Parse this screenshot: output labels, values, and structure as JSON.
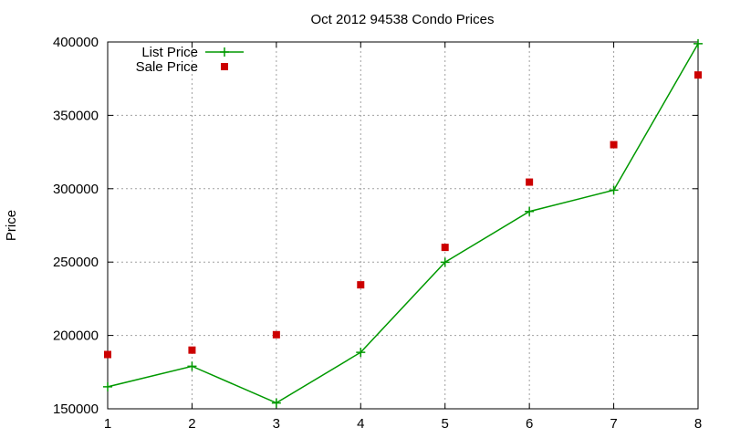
{
  "chart_data": {
    "type": "line",
    "title": "Oct 2012 94538 Condo Prices",
    "xlabel": "",
    "ylabel": "Price",
    "x": [
      1,
      2,
      3,
      4,
      5,
      6,
      7,
      8
    ],
    "xlim": [
      1,
      8
    ],
    "ylim": [
      150000,
      400000
    ],
    "xticks": [
      "1",
      "2",
      "3",
      "4",
      "5",
      "6",
      "7",
      "8"
    ],
    "yticks": [
      "150000",
      "200000",
      "250000",
      "300000",
      "350000",
      "400000"
    ],
    "grid": true,
    "legend_position": "top-left",
    "series": [
      {
        "name": "List Price",
        "style": "line-with-plus-markers",
        "color": "#009900",
        "values": [
          165000,
          179000,
          154000,
          188500,
          249900,
          284500,
          299000,
          398800
        ]
      },
      {
        "name": "Sale Price",
        "style": "square-markers",
        "color": "#cc0000",
        "values": [
          187000,
          190000,
          200500,
          234500,
          260000,
          304500,
          330000,
          377500
        ]
      }
    ]
  }
}
